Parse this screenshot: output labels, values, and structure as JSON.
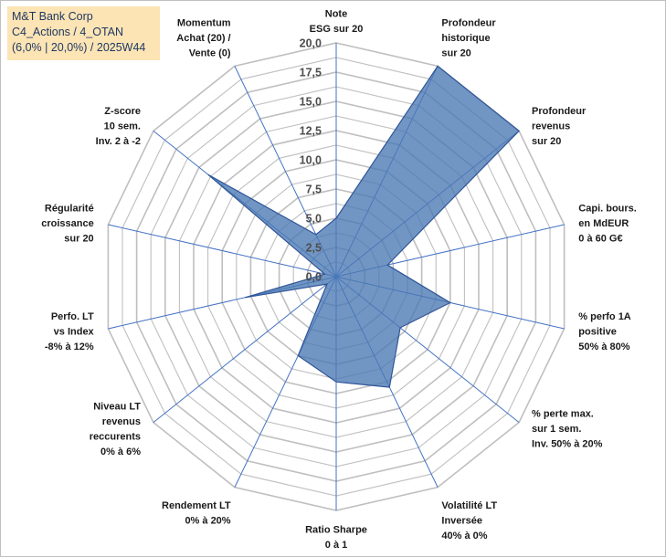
{
  "title_box": {
    "line1": "M&T Bank Corp",
    "line2": "C4_Actions / 4_OTAN",
    "line3": "(6,0% | 20,0%) / 2025W44"
  },
  "colors": {
    "fill": "#4a78b3",
    "stroke": "#2f5597",
    "grid": "#bfbfbf",
    "spoke": "#4472c4",
    "title_bg": "#fce4b4"
  },
  "chart_data": {
    "type": "radar",
    "rmin": 0,
    "rmax": 20,
    "ticks": [
      "0,0",
      "2,5",
      "5,0",
      "7,5",
      "10,0",
      "12,5",
      "15,0",
      "17,5",
      "20,0"
    ],
    "categories": [
      [
        "Note",
        "ESG sur 20"
      ],
      [
        "Profondeur",
        "historique",
        "sur 20"
      ],
      [
        "Profondeur",
        "revenus",
        "sur 20"
      ],
      [
        "Capi. bours.",
        "en MdEUR",
        "0 à 60 G€"
      ],
      [
        "% perfo 1A",
        "positive",
        "50% à 80%"
      ],
      [
        "% perte max.",
        "sur 1 sem.",
        "Inv. 50% à 20%"
      ],
      [
        "Volatilité LT",
        "Inversée",
        "40% à 0%"
      ],
      [
        "Ratio Sharpe",
        "0 à 1"
      ],
      [
        "Rendement LT",
        "0% à 20%"
      ],
      [
        "Niveau LT",
        "revenus",
        "reccurents",
        "0% à 6%"
      ],
      [
        "Perfo. LT",
        "vs Index",
        "-8% à 12%"
      ],
      [
        "Régularité",
        "croissance",
        "sur 20"
      ],
      [
        "Z-score",
        "10 sem.",
        "Inv. 2 à -2"
      ],
      [
        "Momentum",
        "Achat (20) /",
        "Vente (0)"
      ]
    ],
    "values": [
      5.0,
      20.0,
      20.0,
      4.5,
      10.0,
      7.0,
      10.5,
      9.0,
      7.5,
      1.0,
      8.0,
      1.0,
      14.0,
      4.0
    ],
    "grid": true,
    "legend": "none"
  }
}
